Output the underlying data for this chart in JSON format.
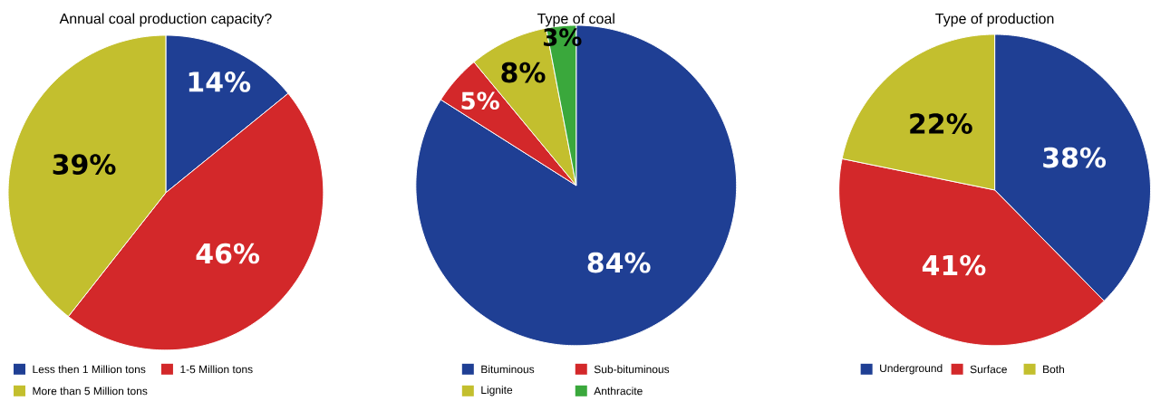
{
  "chart_data": [
    {
      "type": "pie",
      "title": "Annual coal production capacity?",
      "categories": [
        "Less then 1 Million tons",
        "1-5 Million tons",
        "More than 5 Million tons"
      ],
      "values": [
        14,
        46,
        39
      ],
      "value_labels": [
        "14%",
        "46%",
        "39%"
      ],
      "colors": [
        "#1f3f94",
        "#d3282a",
        "#c3bf2e"
      ],
      "legend": "bottom"
    },
    {
      "type": "pie",
      "title": "Type of coal",
      "categories": [
        "Bituminous",
        "Sub-bituminous",
        "Lignite",
        "Anthracite"
      ],
      "values": [
        84,
        5,
        8,
        3
      ],
      "value_labels": [
        "84%",
        "5%",
        "8%",
        "3%"
      ],
      "colors": [
        "#1f3f94",
        "#d3282a",
        "#c3bf2e",
        "#3aa83c"
      ],
      "legend": "bottom"
    },
    {
      "type": "pie",
      "title": "Type of production",
      "categories": [
        "Underground",
        "Surface",
        "Both"
      ],
      "values": [
        38,
        41,
        22
      ],
      "value_labels": [
        "38%",
        "41%",
        "22%"
      ],
      "colors": [
        "#1f3f94",
        "#d3282a",
        "#c3bf2e"
      ],
      "legend": "bottom"
    }
  ]
}
